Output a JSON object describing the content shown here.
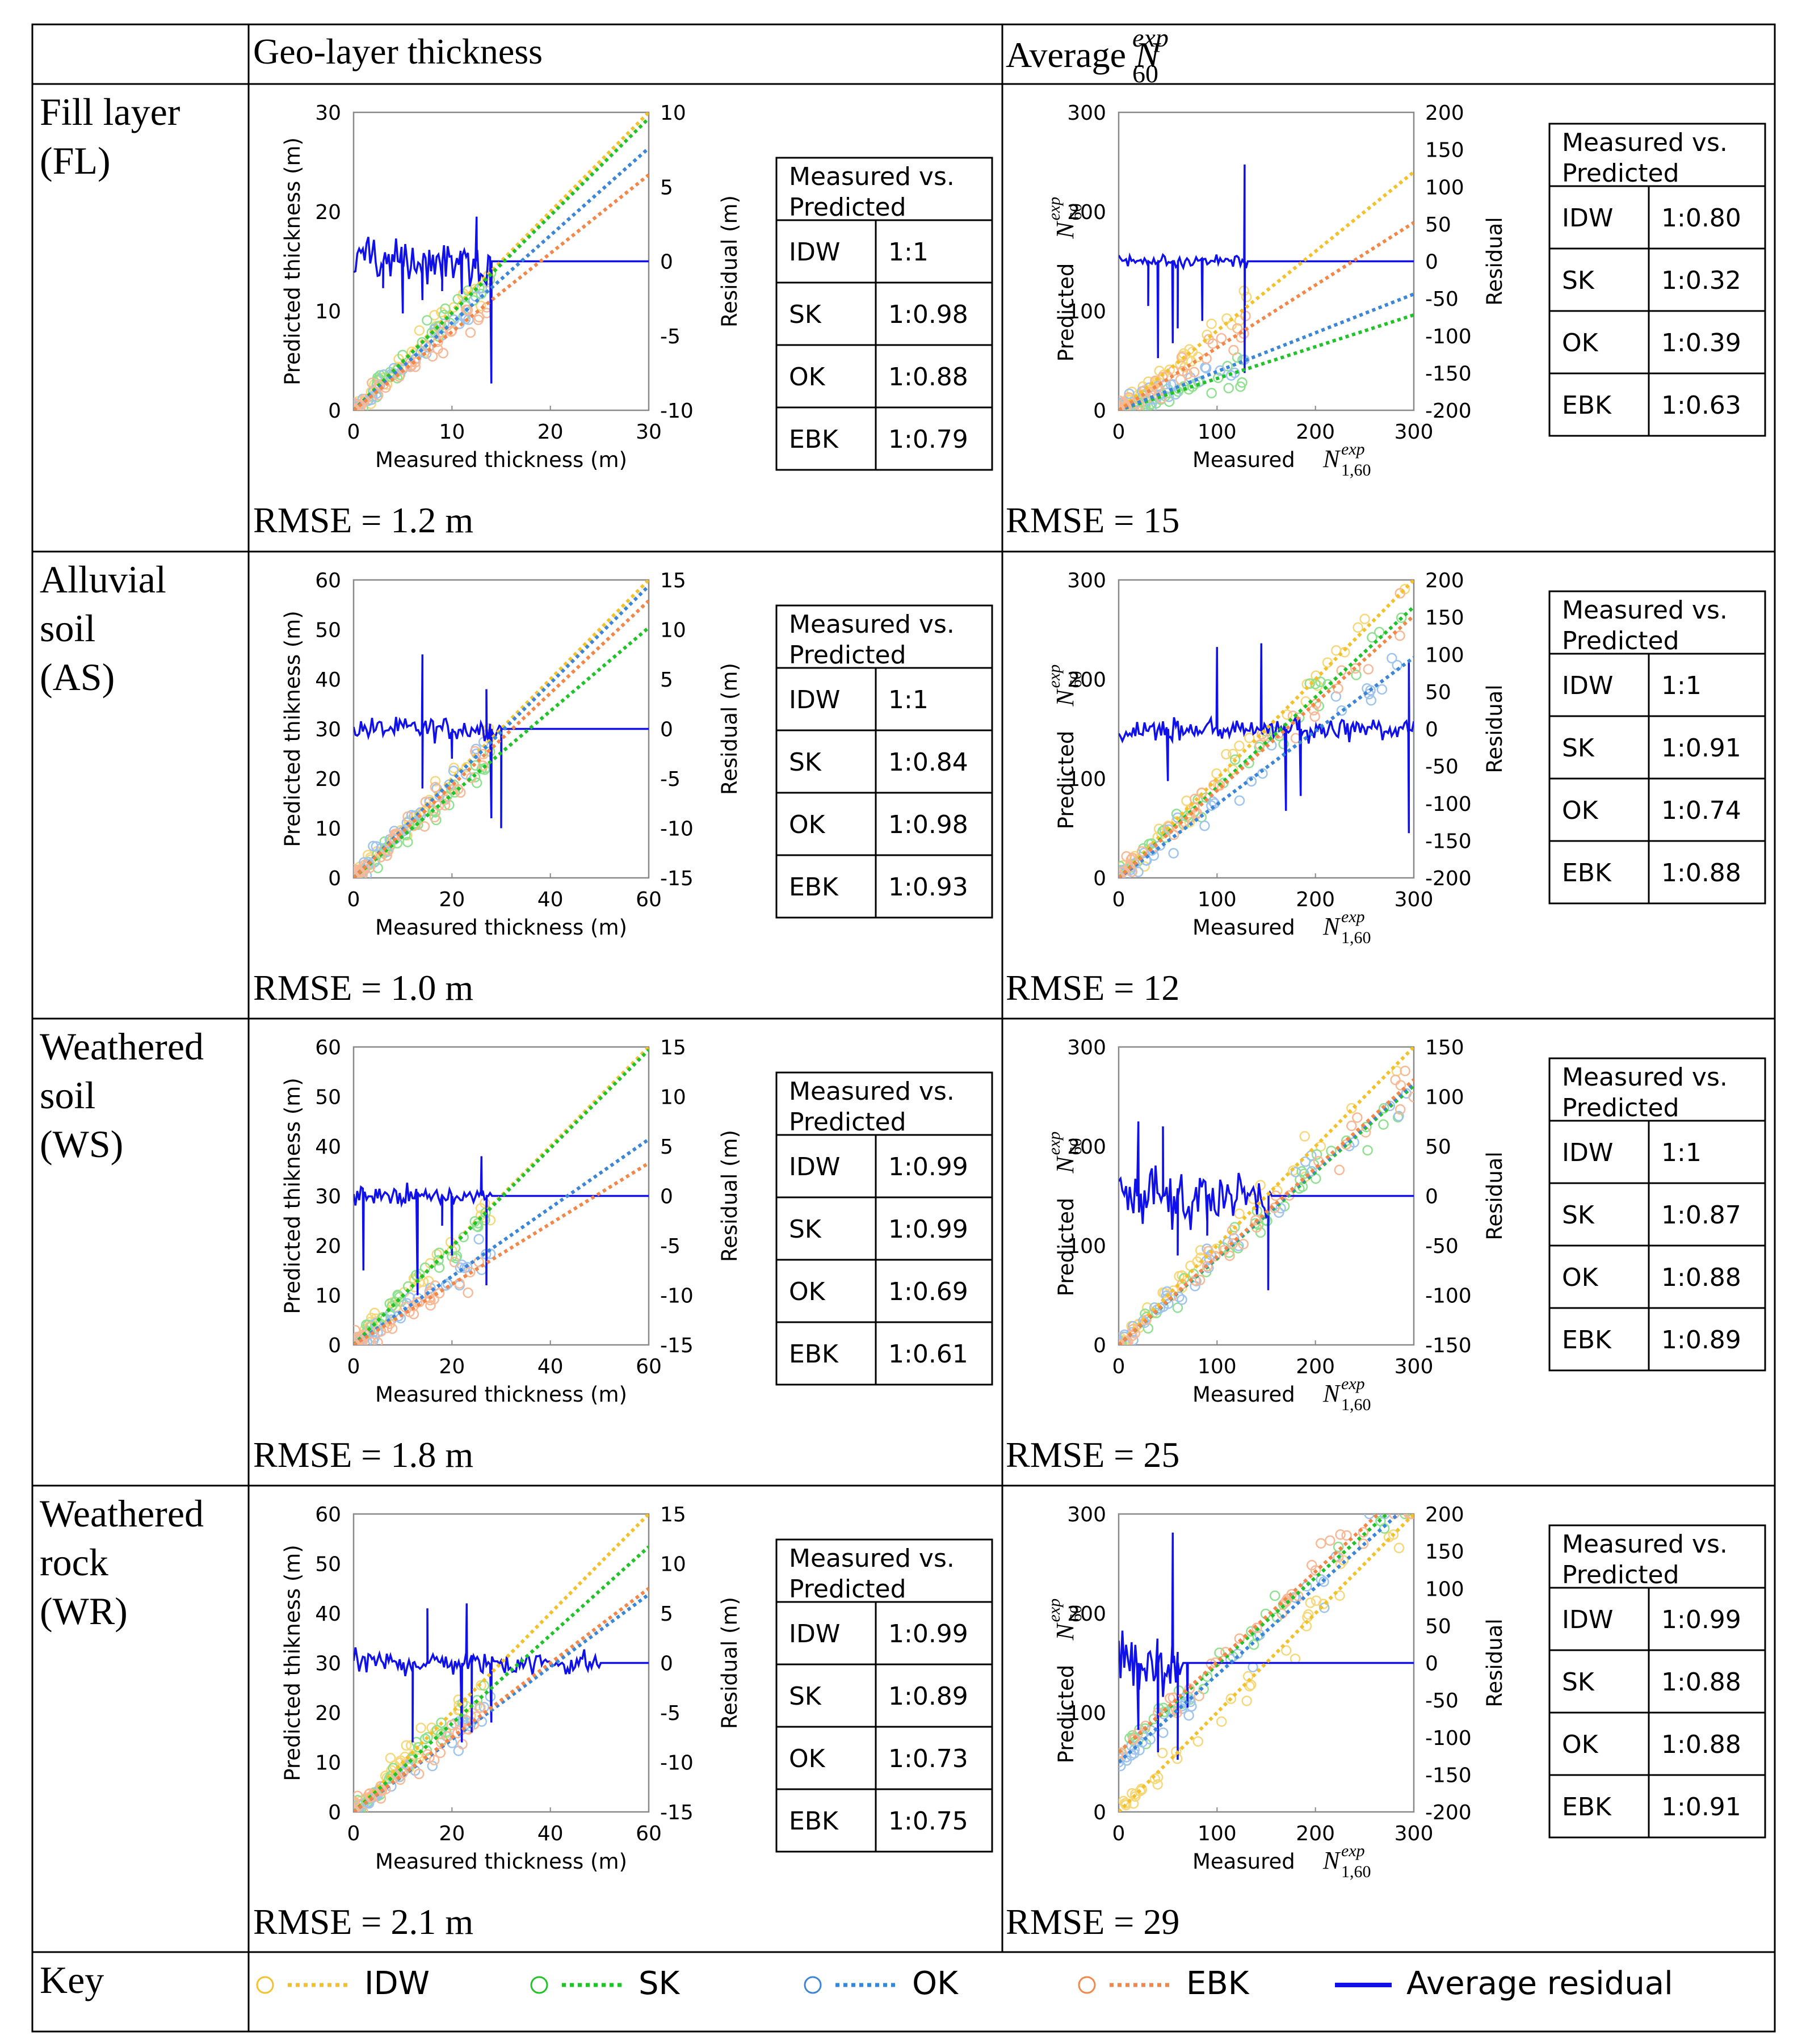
{
  "header": {
    "col1": "Geo-layer thickness",
    "col2_prefix": "Average",
    "col2_symbol": "N",
    "col2_sub": "60",
    "col2_sup": "exp"
  },
  "colors": {
    "IDW": "#F2C12E",
    "SK": "#22C22A",
    "OK": "#3C86D8",
    "EBK": "#F2874A",
    "residual": "#1010E8",
    "scatter_IDW": "#F6D77A",
    "scatter_SK": "#8FE08F",
    "scatter_OK": "#9EC3EC",
    "scatter_EBK": "#F8B896"
  },
  "axis_text": {
    "thk_x": "Measured thickness (m)",
    "thk_y_fl": "Predicted thickness (m)",
    "thk_y": "Predicted thikness (m)",
    "resid_m": "Residual (m)",
    "resid": "Residual",
    "spt_x": "Measured",
    "spt_x_sub": "1,60",
    "spt_y": "Predicted",
    "spt_y_sub": "60",
    "sup": "exp",
    "N": "N"
  },
  "table_header": [
    "Measured vs.",
    "Predicted"
  ],
  "key": {
    "label": "Key",
    "items": [
      "IDW",
      "SK",
      "OK",
      "EBK"
    ],
    "residual": "Average residual"
  },
  "rows": [
    {
      "label": [
        "Fill layer",
        "(FL)"
      ],
      "rmse_thickness": "RMSE = 1.2 m",
      "rmse_spt": "RMSE = 15",
      "table_thickness": [
        [
          "IDW",
          "1:1"
        ],
        [
          "SK",
          "1:0.98"
        ],
        [
          "OK",
          "1:0.88"
        ],
        [
          "EBK",
          "1:0.79"
        ]
      ],
      "table_spt": [
        [
          "IDW",
          "1:0.80"
        ],
        [
          "SK",
          "1:0.32"
        ],
        [
          "OK",
          "1:0.39"
        ],
        [
          "EBK",
          "1:0.63"
        ]
      ]
    },
    {
      "label": [
        "Alluvial",
        "soil",
        "(AS)"
      ],
      "rmse_thickness": "RMSE = 1.0 m",
      "rmse_spt": "RMSE = 12",
      "table_thickness": [
        [
          "IDW",
          "1:1"
        ],
        [
          "SK",
          "1:0.84"
        ],
        [
          "OK",
          "1:0.98"
        ],
        [
          "EBK",
          "1:0.93"
        ]
      ],
      "table_spt": [
        [
          "IDW",
          "1:1"
        ],
        [
          "SK",
          "1:0.91"
        ],
        [
          "OK",
          "1:0.74"
        ],
        [
          "EBK",
          "1:0.88"
        ]
      ]
    },
    {
      "label": [
        "Weathered",
        "soil",
        "(WS)"
      ],
      "rmse_thickness": "RMSE = 1.8 m",
      "rmse_spt": "RMSE = 25",
      "table_thickness": [
        [
          "IDW",
          "1:0.99"
        ],
        [
          "SK",
          "1:0.99"
        ],
        [
          "OK",
          "1:0.69"
        ],
        [
          "EBK",
          "1:0.61"
        ]
      ],
      "table_spt": [
        [
          "IDW",
          "1:1"
        ],
        [
          "SK",
          "1:0.87"
        ],
        [
          "OK",
          "1:0.88"
        ],
        [
          "EBK",
          "1:0.89"
        ]
      ]
    },
    {
      "label": [
        "Weathered",
        "rock",
        "(WR)"
      ],
      "rmse_thickness": "RMSE = 2.1 m",
      "rmse_spt": "RMSE = 29",
      "table_thickness": [
        [
          "IDW",
          "1:0.99"
        ],
        [
          "SK",
          "1:0.89"
        ],
        [
          "OK",
          "1:0.73"
        ],
        [
          "EBK",
          "1:0.75"
        ]
      ],
      "table_spt": [
        [
          "IDW",
          "1:0.99"
        ],
        [
          "SK",
          "1:0.88"
        ],
        [
          "OK",
          "1:0.88"
        ],
        [
          "EBK",
          "1:0.91"
        ]
      ]
    }
  ],
  "chart_data": [
    {
      "id": "FL-thickness",
      "type": "scatter",
      "xlabel": "Measured thickness (m)",
      "ylabel": "Predicted thickness (m)",
      "y2label": "Residual (m)",
      "xlim": [
        0,
        30
      ],
      "ylim": [
        0,
        30
      ],
      "y2lim": [
        -10,
        10
      ],
      "xticks": [
        0,
        10,
        20,
        30
      ],
      "yticks": [
        0,
        10,
        20,
        30
      ],
      "y2ticks": [
        -10,
        -5,
        0,
        5,
        10
      ],
      "trendlines": [
        {
          "name": "IDW",
          "slope": 1.0,
          "intercept": 0
        },
        {
          "name": "SK",
          "slope": 0.98,
          "intercept": 0
        },
        {
          "name": "OK",
          "slope": 0.88,
          "intercept": 0
        },
        {
          "name": "EBK",
          "slope": 0.79,
          "intercept": 0
        }
      ],
      "scatter_extent": [
        0,
        14
      ],
      "residual": {
        "x0": 0,
        "x1": 30,
        "noise_until": 14,
        "amp": 2.5,
        "spikes": [
          [
            14,
            -8.2
          ],
          [
            5,
            -3.5
          ],
          [
            7,
            -2.6
          ],
          [
            11,
            -2.2
          ],
          [
            12.5,
            3.0
          ],
          [
            3,
            -1.8
          ],
          [
            9,
            -2.0
          ]
        ]
      }
    },
    {
      "id": "FL-spt",
      "type": "scatter",
      "xlabel": "Measured N1,60exp",
      "ylabel": "Predicted N60exp",
      "y2label": "Residual",
      "xlim": [
        0,
        300
      ],
      "ylim": [
        0,
        300
      ],
      "y2lim": [
        -200,
        200
      ],
      "xticks": [
        0,
        100,
        200,
        300
      ],
      "yticks": [
        0,
        100,
        200,
        300
      ],
      "y2ticks": [
        -200,
        -150,
        -100,
        -50,
        0,
        50,
        100,
        150,
        200
      ],
      "trendlines": [
        {
          "name": "IDW",
          "slope": 0.8,
          "intercept": 0
        },
        {
          "name": "SK",
          "slope": 0.32,
          "intercept": 0
        },
        {
          "name": "OK",
          "slope": 0.39,
          "intercept": 0
        },
        {
          "name": "EBK",
          "slope": 0.63,
          "intercept": 0
        }
      ],
      "scatter_extent": [
        0,
        130
      ],
      "residual": {
        "x0": 0,
        "x1": 300,
        "noise_until": 130,
        "amp": 15,
        "spikes": [
          [
            128,
            130
          ],
          [
            128,
            -150
          ],
          [
            40,
            -130
          ],
          [
            55,
            -110
          ],
          [
            60,
            -90
          ],
          [
            30,
            -60
          ],
          [
            85,
            -80
          ]
        ]
      }
    },
    {
      "id": "AS-thickness",
      "type": "scatter",
      "xlabel": "Measured thickness (m)",
      "ylabel": "Predicted thikness (m)",
      "y2label": "Residual (m)",
      "xlim": [
        0,
        60
      ],
      "ylim": [
        0,
        60
      ],
      "y2lim": [
        -15,
        15
      ],
      "xticks": [
        0,
        20,
        40,
        60
      ],
      "yticks": [
        0,
        10,
        20,
        30,
        40,
        50,
        60
      ],
      "y2ticks": [
        -15,
        -10,
        -5,
        0,
        5,
        10,
        15
      ],
      "trendlines": [
        {
          "name": "IDW",
          "slope": 1.0,
          "intercept": 0
        },
        {
          "name": "SK",
          "slope": 0.84,
          "intercept": 0
        },
        {
          "name": "OK",
          "slope": 0.98,
          "intercept": 0
        },
        {
          "name": "EBK",
          "slope": 0.93,
          "intercept": 0
        }
      ],
      "scatter_extent": [
        0,
        28
      ],
      "residual": {
        "x0": 0,
        "x1": 60,
        "noise_until": 30,
        "amp": 2,
        "spikes": [
          [
            14,
            7.5
          ],
          [
            14,
            -6
          ],
          [
            28,
            -9
          ],
          [
            30,
            -10
          ],
          [
            27,
            4
          ],
          [
            20,
            -3
          ]
        ]
      }
    },
    {
      "id": "AS-spt",
      "type": "scatter",
      "xlabel": "Measured N1,60exp",
      "ylabel": "Predicted N60exp",
      "y2label": "Residual",
      "xlim": [
        0,
        300
      ],
      "ylim": [
        0,
        300
      ],
      "y2lim": [
        -200,
        200
      ],
      "xticks": [
        0,
        100,
        200,
        300
      ],
      "yticks": [
        0,
        100,
        200,
        300
      ],
      "y2ticks": [
        -200,
        -150,
        -100,
        -50,
        0,
        50,
        100,
        150,
        200
      ],
      "trendlines": [
        {
          "name": "IDW",
          "slope": 1.0,
          "intercept": 0
        },
        {
          "name": "SK",
          "slope": 0.91,
          "intercept": 0
        },
        {
          "name": "OK",
          "slope": 0.74,
          "intercept": 0
        },
        {
          "name": "EBK",
          "slope": 0.88,
          "intercept": 0
        }
      ],
      "scatter_extent": [
        0,
        300
      ],
      "residual": {
        "x0": 0,
        "x1": 300,
        "noise_until": 300,
        "amp": 25,
        "spikes": [
          [
            100,
            110
          ],
          [
            145,
            115
          ],
          [
            170,
            -110
          ],
          [
            185,
            -90
          ],
          [
            295,
            -140
          ],
          [
            295,
            90
          ],
          [
            50,
            -70
          ]
        ]
      }
    },
    {
      "id": "WS-thickness",
      "type": "scatter",
      "xlabel": "Measured thickness (m)",
      "ylabel": "Predicted thikness (m)",
      "y2label": "Residual (m)",
      "xlim": [
        0,
        60
      ],
      "ylim": [
        0,
        60
      ],
      "y2lim": [
        -15,
        15
      ],
      "xticks": [
        0,
        20,
        40,
        60
      ],
      "yticks": [
        0,
        10,
        20,
        30,
        40,
        50,
        60
      ],
      "y2ticks": [
        -15,
        -10,
        -5,
        0,
        5,
        10,
        15
      ],
      "trendlines": [
        {
          "name": "IDW",
          "slope": 1.0,
          "intercept": 0
        },
        {
          "name": "SK",
          "slope": 0.99,
          "intercept": 0
        },
        {
          "name": "OK",
          "slope": 0.69,
          "intercept": 0
        },
        {
          "name": "EBK",
          "slope": 0.61,
          "intercept": 0
        }
      ],
      "scatter_extent": [
        0,
        28
      ],
      "residual": {
        "x0": 0,
        "x1": 60,
        "noise_until": 28,
        "amp": 1.5,
        "spikes": [
          [
            2,
            -7.5
          ],
          [
            13,
            -10
          ],
          [
            20,
            -6
          ],
          [
            27,
            -9
          ],
          [
            26,
            4
          ],
          [
            18,
            -3
          ]
        ]
      }
    },
    {
      "id": "WS-spt",
      "type": "scatter",
      "xlabel": "Measured N1,60exp",
      "ylabel": "Predicted N60exp",
      "y2label": "Residual",
      "xlim": [
        0,
        300
      ],
      "ylim": [
        0,
        300
      ],
      "y2lim": [
        -150,
        150
      ],
      "xticks": [
        0,
        100,
        200,
        300
      ],
      "yticks": [
        0,
        100,
        200,
        300
      ],
      "y2ticks": [
        -150,
        -100,
        -50,
        0,
        50,
        100,
        150
      ],
      "trendlines": [
        {
          "name": "IDW",
          "slope": 1.0,
          "intercept": 0
        },
        {
          "name": "SK",
          "slope": 0.87,
          "intercept": 0
        },
        {
          "name": "OK",
          "slope": 0.88,
          "intercept": 0
        },
        {
          "name": "EBK",
          "slope": 0.89,
          "intercept": 0
        }
      ],
      "scatter_extent": [
        0,
        300
      ],
      "residual": {
        "x0": 0,
        "x1": 300,
        "noise_until": 155,
        "amp": 45,
        "spikes": [
          [
            152,
            -95
          ],
          [
            20,
            75
          ],
          [
            60,
            -60
          ],
          [
            45,
            70
          ],
          [
            90,
            -40
          ]
        ]
      }
    },
    {
      "id": "WR-thickness",
      "type": "scatter",
      "xlabel": "Measured thickness (m)",
      "ylabel": "Predicted thikness (m)",
      "y2label": "Residual (m)",
      "xlim": [
        0,
        60
      ],
      "ylim": [
        0,
        60
      ],
      "y2lim": [
        -15,
        15
      ],
      "xticks": [
        0,
        20,
        40,
        60
      ],
      "yticks": [
        0,
        10,
        20,
        30,
        40,
        50,
        60
      ],
      "y2ticks": [
        -15,
        -10,
        -5,
        0,
        5,
        10,
        15
      ],
      "trendlines": [
        {
          "name": "IDW",
          "slope": 1.0,
          "intercept": 0
        },
        {
          "name": "SK",
          "slope": 0.89,
          "intercept": 0
        },
        {
          "name": "OK",
          "slope": 0.73,
          "intercept": 0
        },
        {
          "name": "EBK",
          "slope": 0.75,
          "intercept": 0
        }
      ],
      "scatter_extent": [
        0,
        28
      ],
      "residual": {
        "x0": 0,
        "x1": 60,
        "noise_until": 50,
        "amp": 2.2,
        "spikes": [
          [
            12,
            -8
          ],
          [
            15,
            5.5
          ],
          [
            23,
            6
          ],
          [
            24,
            -7
          ],
          [
            28,
            -6
          ],
          [
            22,
            -8
          ]
        ]
      }
    },
    {
      "id": "WR-spt",
      "type": "scatter",
      "xlabel": "Measured N1,60exp",
      "ylabel": "Predicted N60exp",
      "y2label": "Residual",
      "xlim": [
        0,
        300
      ],
      "ylim": [
        0,
        300
      ],
      "y2lim": [
        -200,
        200
      ],
      "xticks": [
        0,
        100,
        200,
        300
      ],
      "yticks": [
        0,
        100,
        200,
        300
      ],
      "y2ticks": [
        -200,
        -150,
        -100,
        -50,
        0,
        50,
        100,
        150,
        200
      ],
      "trendlines": [
        {
          "name": "IDW",
          "slope": 1.0,
          "intercept": 0
        },
        {
          "name": "SK",
          "slope": 0.88,
          "intercept": 60
        },
        {
          "name": "OK",
          "slope": 0.88,
          "intercept": 50
        },
        {
          "name": "EBK",
          "slope": 0.91,
          "intercept": 60
        }
      ],
      "scatter_extent": [
        0,
        300
      ],
      "residual": {
        "x0": 0,
        "x1": 300,
        "noise_until": 65,
        "amp": 80,
        "spikes": [
          [
            55,
            175
          ],
          [
            60,
            -130
          ],
          [
            40,
            -120
          ],
          [
            20,
            -90
          ],
          [
            70,
            -60
          ]
        ]
      }
    }
  ]
}
